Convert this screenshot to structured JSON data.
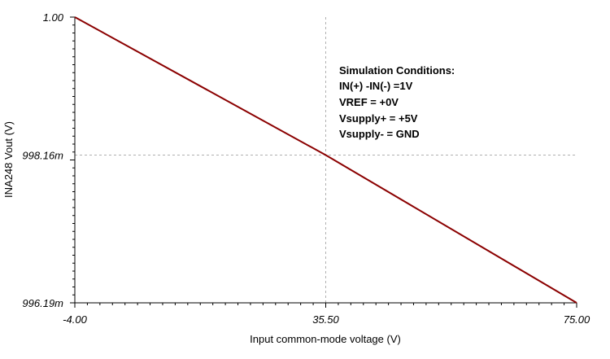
{
  "chart_data": {
    "type": "line",
    "xlabel": "Input common-mode voltage (V)",
    "ylabel": "INA248 Vout (V)",
    "xlim": [
      -4.0,
      75.0
    ],
    "ylim": [
      0.99619,
      1.0
    ],
    "x_ticks": [
      {
        "value": -4.0,
        "label": "-4.00"
      },
      {
        "value": 35.5,
        "label": "35.50"
      },
      {
        "value": 75.0,
        "label": "75.00"
      }
    ],
    "y_ticks": [
      {
        "value": 1.0,
        "label": "1.00"
      },
      {
        "value": 0.99816,
        "label": "998.16m"
      },
      {
        "value": 0.99619,
        "label": "996.19m"
      }
    ],
    "grid": true,
    "line_color": "#8b0000",
    "series": [
      {
        "x": [
          -4.0,
          35.5,
          75.0
        ],
        "y": [
          1.0,
          0.99816,
          0.99619
        ]
      }
    ],
    "annotation_lines": [
      "Simulation Conditions:",
      "IN(+) -IN(-) =1V",
      "VREF = +0V",
      "Vsupply+ = +5V",
      "Vsupply- = GND"
    ]
  }
}
